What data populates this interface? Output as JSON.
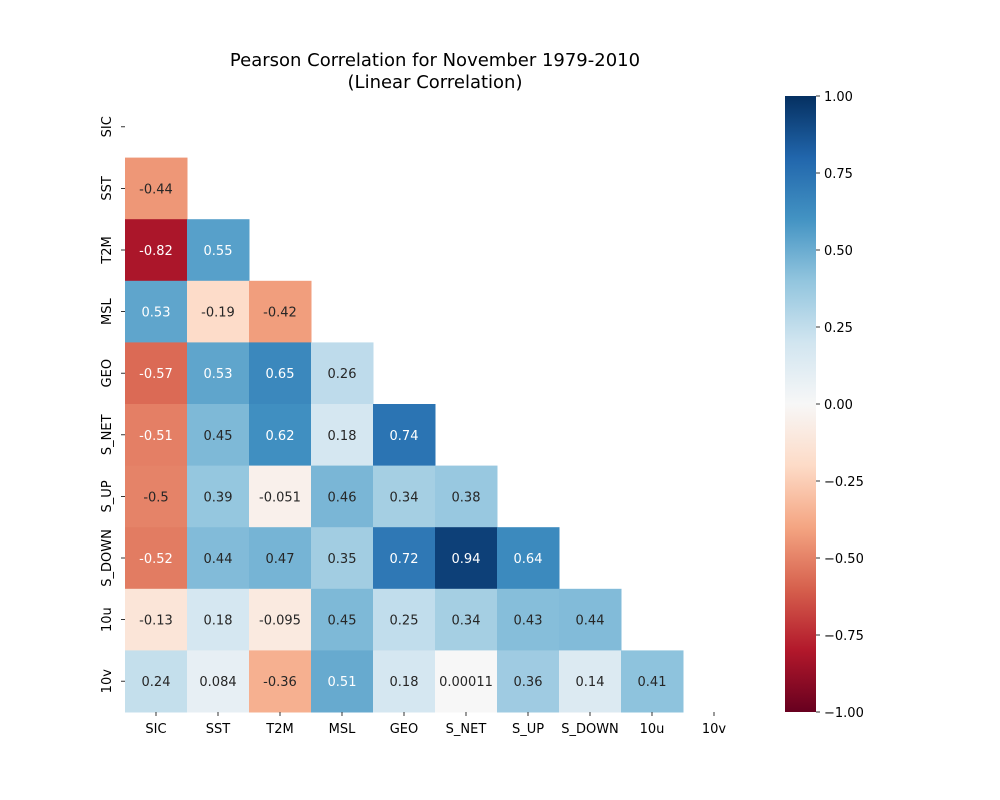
{
  "chart_data": {
    "type": "heatmap",
    "title": "Pearson Correlation for November 1979-2010",
    "subtitle": "(Linear Correlation)",
    "variables": [
      "SIC",
      "SST",
      "T2M",
      "MSL",
      "GEO",
      "S_NET",
      "S_UP",
      "S_DOWN",
      "10u",
      "10v"
    ],
    "matrix_lower_triangle": [
      [],
      [
        "-0.44"
      ],
      [
        "-0.82",
        "0.55"
      ],
      [
        "0.53",
        "-0.19",
        "-0.42"
      ],
      [
        "-0.57",
        "0.53",
        "0.65",
        "0.26"
      ],
      [
        "-0.51",
        "0.45",
        "0.62",
        "0.18",
        "0.74"
      ],
      [
        "-0.5",
        "0.39",
        "-0.051",
        "0.46",
        "0.34",
        "0.38"
      ],
      [
        "-0.52",
        "0.44",
        "0.47",
        "0.35",
        "0.72",
        "0.94",
        "0.64"
      ],
      [
        "-0.13",
        "0.18",
        "-0.095",
        "0.45",
        "0.25",
        "0.34",
        "0.43",
        "0.44"
      ],
      [
        "0.24",
        "0.084",
        "-0.36",
        "0.51",
        "0.18",
        "0.00011",
        "0.36",
        "0.14",
        "0.41"
      ]
    ],
    "mask": "upper triangle incl. diagonal",
    "colormap": "RdBu",
    "vmin": -1.0,
    "vmax": 1.0,
    "colorbar_ticks": [
      "1.00",
      "0.75",
      "0.50",
      "0.25",
      "0.00",
      "−0.25",
      "−0.50",
      "−0.75",
      "−1.00"
    ],
    "grid": false
  }
}
